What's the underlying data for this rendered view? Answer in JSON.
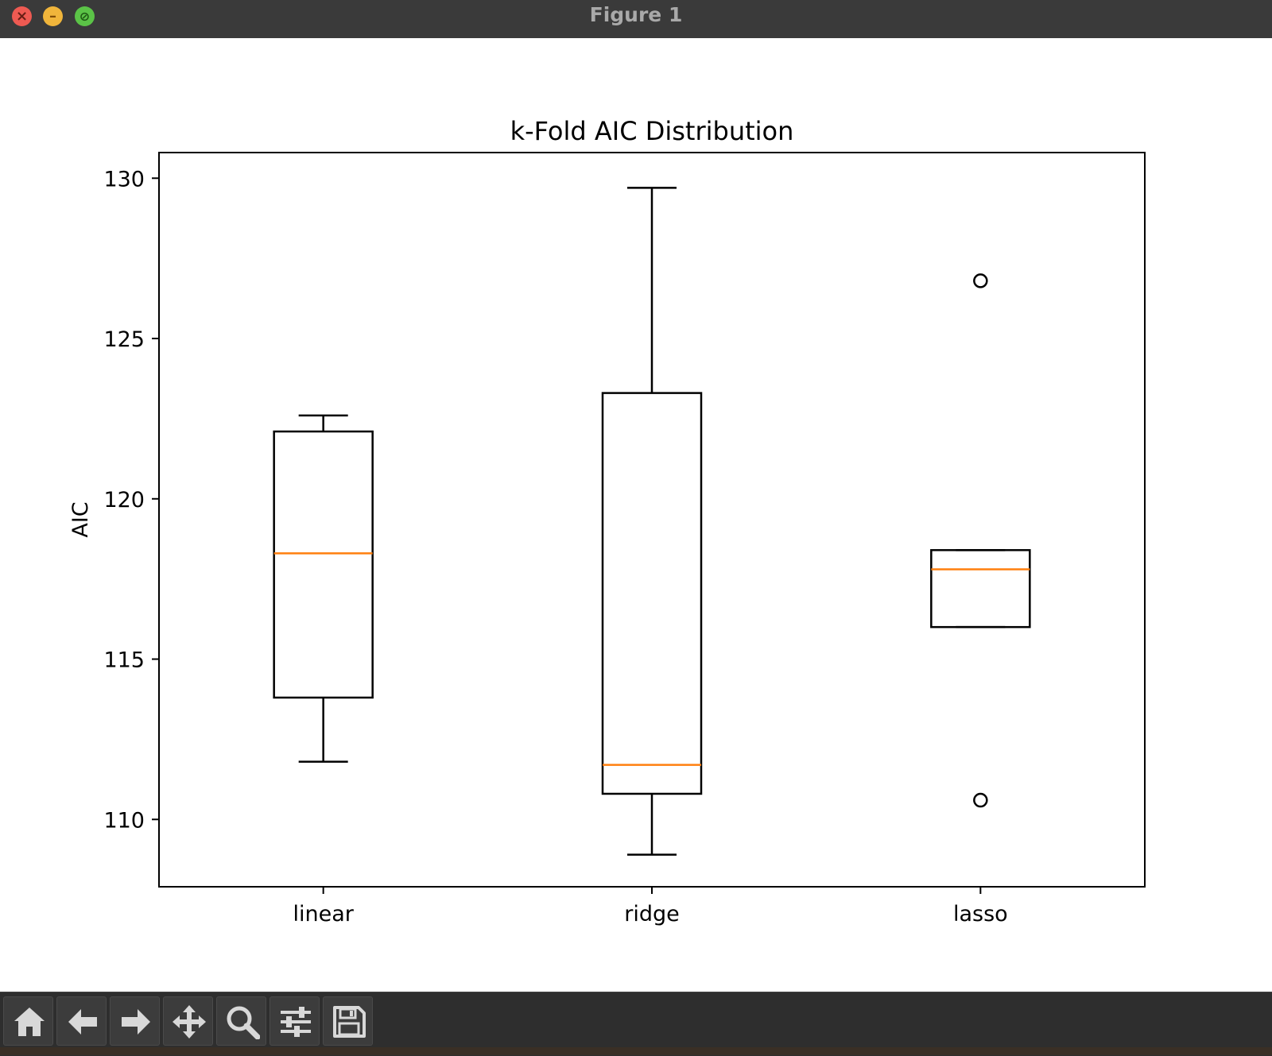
{
  "window": {
    "title": "Figure 1"
  },
  "toolbar": {
    "buttons": [
      {
        "name": "home",
        "icon": "home-icon"
      },
      {
        "name": "back",
        "icon": "arrow-left-icon"
      },
      {
        "name": "forward",
        "icon": "arrow-right-icon"
      },
      {
        "name": "pan",
        "icon": "move-icon"
      },
      {
        "name": "zoom",
        "icon": "magnifier-icon"
      },
      {
        "name": "configure",
        "icon": "sliders-icon"
      },
      {
        "name": "save",
        "icon": "floppy-disk-icon"
      }
    ]
  },
  "chart_data": {
    "type": "box",
    "title": "k-Fold AIC Distribution",
    "xlabel": "",
    "ylabel": "AIC",
    "ylim": [
      107.9,
      130.8
    ],
    "yticks": [
      110,
      115,
      120,
      125,
      130
    ],
    "grid": false,
    "categories": [
      "linear",
      "ridge",
      "lasso"
    ],
    "boxes": [
      {
        "label": "linear",
        "whislo": 111.8,
        "q1": 113.8,
        "med": 118.3,
        "q3": 122.1,
        "whishi": 122.6,
        "fliers": []
      },
      {
        "label": "ridge",
        "whislo": 108.9,
        "q1": 110.8,
        "med": 111.7,
        "q3": 123.3,
        "whishi": 129.7,
        "fliers": []
      },
      {
        "label": "lasso",
        "whislo": 116.0,
        "q1": 116.0,
        "med": 117.8,
        "q3": 118.4,
        "whishi": 118.4,
        "fliers": [
          126.8,
          110.6
        ]
      }
    ],
    "colors": {
      "box": "#000000",
      "median": "#ff7f0e",
      "flier": "#000000"
    }
  }
}
